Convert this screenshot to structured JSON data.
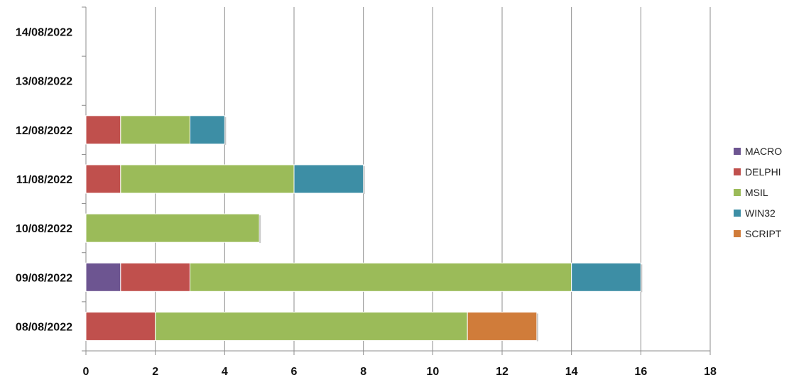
{
  "chart_data": {
    "type": "bar",
    "orientation": "horizontal",
    "stacked": true,
    "categories": [
      "08/08/2022",
      "09/08/2022",
      "10/08/2022",
      "11/08/2022",
      "12/08/2022",
      "13/08/2022",
      "14/08/2022"
    ],
    "series": [
      {
        "name": "MACRO",
        "color": "#6d5591",
        "values": [
          0,
          1,
          0,
          0,
          0,
          0,
          0
        ]
      },
      {
        "name": "DELPHI",
        "color": "#c0504d",
        "values": [
          2,
          2,
          0,
          1,
          1,
          0,
          0
        ]
      },
      {
        "name": "MSIL",
        "color": "#9bbb59",
        "values": [
          9,
          11,
          5,
          5,
          2,
          0,
          0
        ]
      },
      {
        "name": "WIN32",
        "color": "#3d8ea5",
        "values": [
          0,
          2,
          0,
          2,
          1,
          0,
          0
        ]
      },
      {
        "name": "SCRIPT",
        "color": "#d07c3a",
        "values": [
          2,
          0,
          0,
          0,
          0,
          0,
          0
        ]
      }
    ],
    "xlim": [
      0,
      18
    ],
    "xticks": [
      "0",
      "2",
      "4",
      "6",
      "8",
      "10",
      "12",
      "14",
      "16",
      "18"
    ],
    "grid": true,
    "legend_position": "right",
    "title": "",
    "xlabel": "",
    "ylabel": ""
  }
}
